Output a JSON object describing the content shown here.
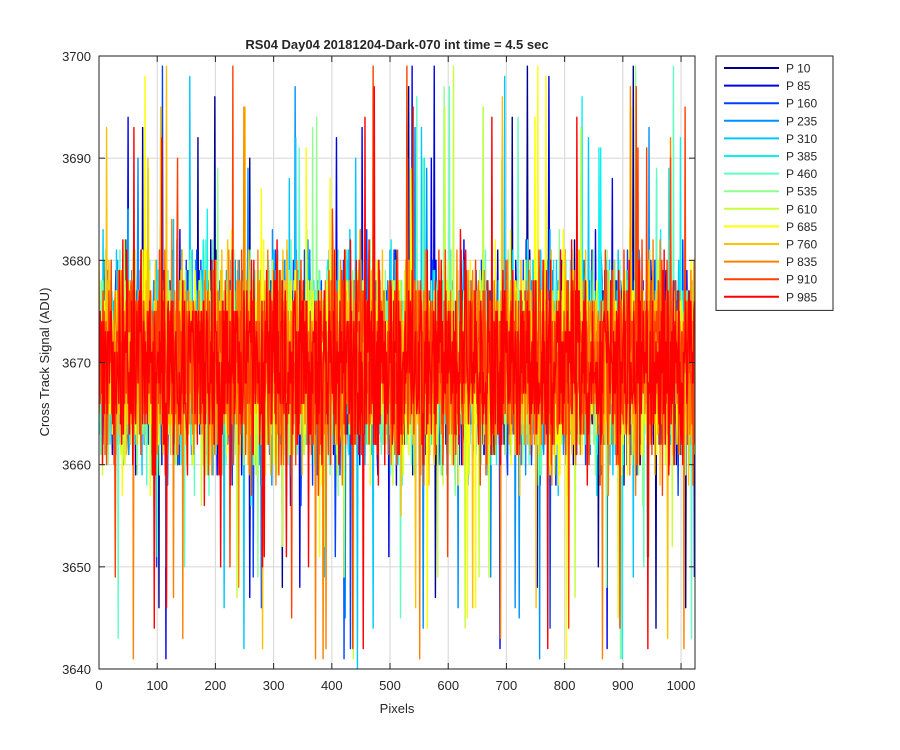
{
  "chart_data": {
    "type": "line",
    "title": "RS04 Day04 20181204-Dark-070 int time = 4.5 sec",
    "xlabel": "Pixels",
    "ylabel": "Cross Track Signal (ADU)",
    "xlim": [
      0,
      1024
    ],
    "ylim": [
      3640,
      3700
    ],
    "xticks": [
      0,
      100,
      200,
      300,
      400,
      500,
      600,
      700,
      800,
      900,
      1000
    ],
    "yticks": [
      3640,
      3650,
      3660,
      3670,
      3680,
      3690,
      3700
    ],
    "grid": true,
    "legend_position": "outside-top-right",
    "noise": {
      "mean": 3670,
      "typical_low": 3656,
      "typical_high": 3685,
      "min": 3640,
      "max": 3699,
      "points_per_series": 1024
    },
    "series": [
      {
        "name": "P 10",
        "color": "#00008f"
      },
      {
        "name": "P 85",
        "color": "#0000e6"
      },
      {
        "name": "P 160",
        "color": "#0040ff"
      },
      {
        "name": "P 235",
        "color": "#0090ff"
      },
      {
        "name": "P 310",
        "color": "#00c8ff"
      },
      {
        "name": "P 385",
        "color": "#10f0f0"
      },
      {
        "name": "P 460",
        "color": "#60ffc0"
      },
      {
        "name": "P 535",
        "color": "#90ff90"
      },
      {
        "name": "P 610",
        "color": "#c8ff38"
      },
      {
        "name": "P 685",
        "color": "#ffff00"
      },
      {
        "name": "P 760",
        "color": "#ffc000"
      },
      {
        "name": "P 835",
        "color": "#ff8000"
      },
      {
        "name": "P 910",
        "color": "#ff4000"
      },
      {
        "name": "P 985",
        "color": "#ff0000"
      }
    ]
  }
}
